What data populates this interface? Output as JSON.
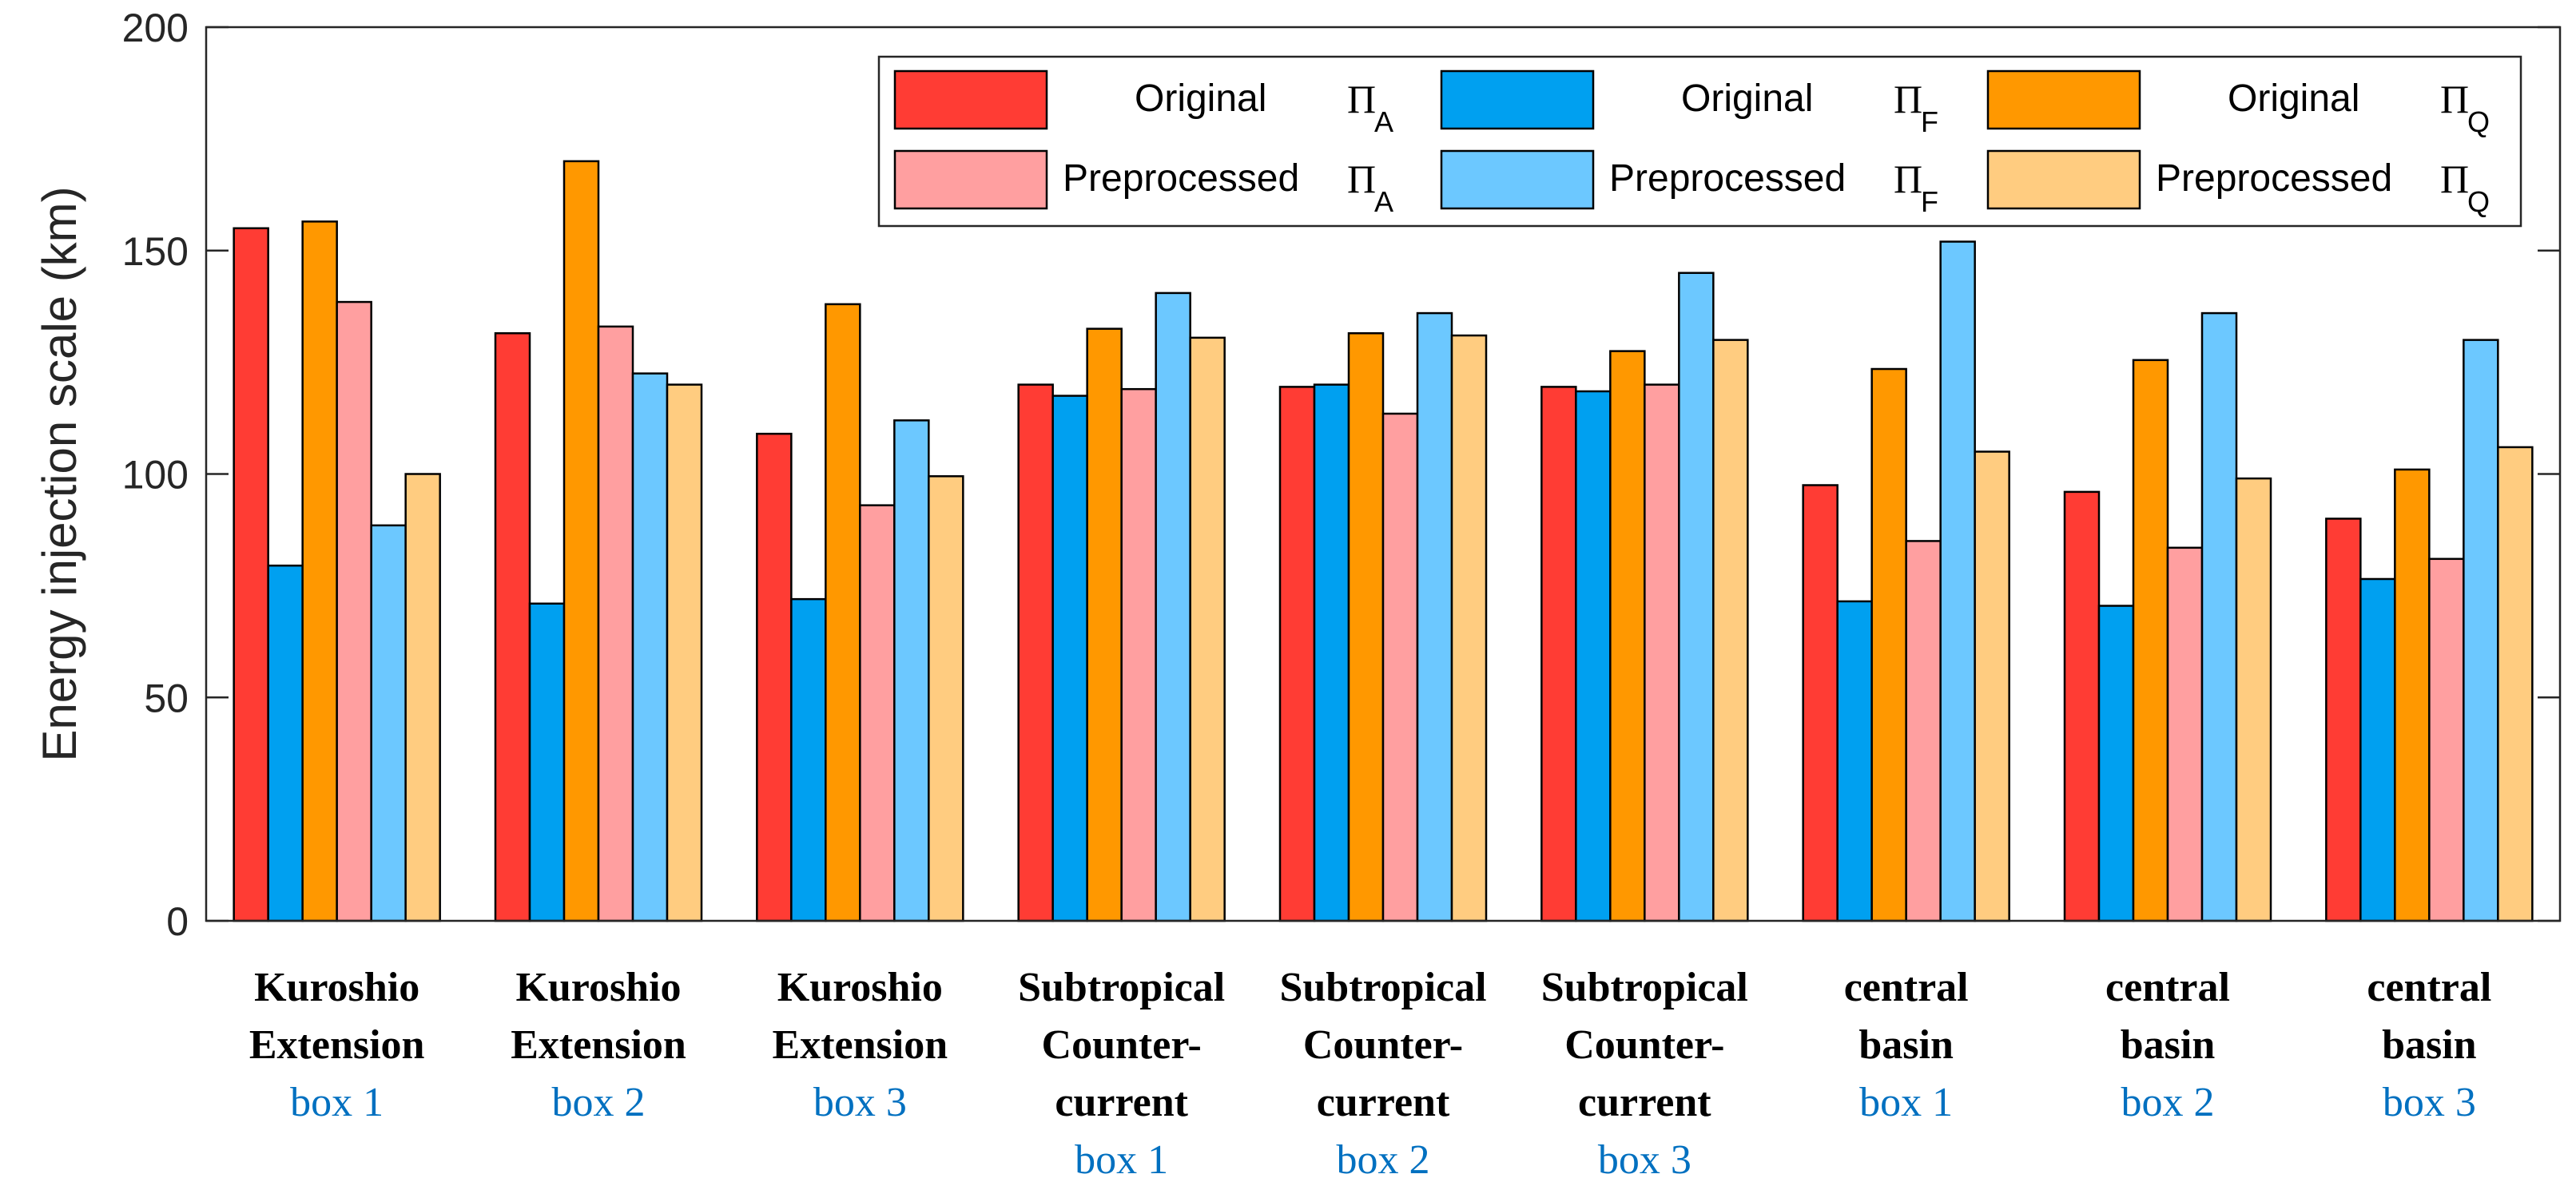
{
  "chart_data": {
    "type": "bar",
    "title": "",
    "xlabel": "",
    "ylabel": "Energy injection scale (km)",
    "ylim": [
      0,
      200
    ],
    "yticks": [
      "0",
      "50",
      "100",
      "150",
      "200"
    ],
    "grid": false,
    "legend_position": "top-right",
    "categories": [
      {
        "lines": [
          "Kuroshio",
          "Extension"
        ],
        "box": "box 1"
      },
      {
        "lines": [
          "Kuroshio",
          "Extension"
        ],
        "box": "box 2"
      },
      {
        "lines": [
          "Kuroshio",
          "Extension"
        ],
        "box": "box 3"
      },
      {
        "lines": [
          "Subtropical",
          "Counter-",
          "current"
        ],
        "box": "box 1"
      },
      {
        "lines": [
          "Subtropical",
          "Counter-",
          "current"
        ],
        "box": "box 2"
      },
      {
        "lines": [
          "Subtropical",
          "Counter-",
          "current"
        ],
        "box": "box 3"
      },
      {
        "lines": [
          "central",
          "basin"
        ],
        "box": "box 1"
      },
      {
        "lines": [
          "central",
          "basin"
        ],
        "box": "box 2"
      },
      {
        "lines": [
          "central",
          "basin"
        ],
        "box": "box 3"
      }
    ],
    "series": [
      {
        "name": "Original",
        "symbol": "Π",
        "sub": "A",
        "color": "#ff3c34",
        "values": [
          155,
          131.5,
          109,
          120,
          119.5,
          119.5,
          97.5,
          96,
          90
        ]
      },
      {
        "name": "Original",
        "symbol": "Π",
        "sub": "F",
        "color": "#00a0f0",
        "values": [
          79.5,
          71,
          72,
          117.5,
          120,
          118.5,
          71.5,
          70.5,
          76.5
        ]
      },
      {
        "name": "Original",
        "symbol": "Π",
        "sub": "Q",
        "color": "#ff9800",
        "values": [
          156.5,
          170,
          138,
          132.5,
          131.5,
          127.5,
          123.5,
          125.5,
          101
        ]
      },
      {
        "name": "Preprocessed",
        "symbol": "Π",
        "sub": "A",
        "color": "#ff9fa0",
        "values": [
          138.5,
          133,
          93,
          119,
          113.5,
          120,
          85,
          83.5,
          81
        ]
      },
      {
        "name": "Preprocessed",
        "symbol": "Π",
        "sub": "F",
        "color": "#6cc8ff",
        "values": [
          88.5,
          122.5,
          112,
          140.5,
          136,
          145,
          152,
          136,
          130
        ]
      },
      {
        "name": "Preprocessed",
        "symbol": "Π",
        "sub": "Q",
        "color": "#ffcc80",
        "values": [
          100,
          120,
          99.5,
          130.5,
          131,
          130,
          105,
          99,
          106
        ]
      }
    ]
  }
}
